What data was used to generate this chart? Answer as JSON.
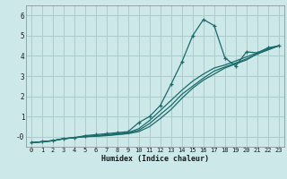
{
  "xlabel": "Humidex (Indice chaleur)",
  "bg_color": "#cce8e8",
  "grid_color": "#aacccc",
  "line_color": "#1a6b6b",
  "xlim": [
    -0.5,
    23.5
  ],
  "ylim": [
    -0.5,
    6.5
  ],
  "xticks": [
    0,
    1,
    2,
    3,
    4,
    5,
    6,
    7,
    8,
    9,
    10,
    11,
    12,
    13,
    14,
    15,
    16,
    17,
    18,
    19,
    20,
    21,
    22,
    23
  ],
  "yticks": [
    0,
    1,
    2,
    3,
    4,
    5,
    6
  ],
  "ytick_labels": [
    "-0",
    "1",
    "2",
    "3",
    "4",
    "5",
    "6"
  ],
  "line1_x": [
    0,
    1,
    2,
    3,
    4,
    5,
    6,
    7,
    8,
    9,
    10,
    11,
    12,
    13,
    14,
    15,
    16,
    17,
    18,
    19,
    20,
    21,
    22,
    23
  ],
  "line1_y": [
    -0.3,
    -0.25,
    -0.2,
    -0.1,
    -0.05,
    0.05,
    0.1,
    0.15,
    0.2,
    0.25,
    0.7,
    1.0,
    1.55,
    2.6,
    3.7,
    5.0,
    5.8,
    5.5,
    3.9,
    3.5,
    4.2,
    4.15,
    4.4,
    4.5
  ],
  "line2_x": [
    0,
    1,
    2,
    3,
    4,
    5,
    6,
    7,
    8,
    9,
    10,
    11,
    12,
    13,
    14,
    15,
    16,
    17,
    18,
    19,
    20,
    21,
    22,
    23
  ],
  "line2_y": [
    -0.3,
    -0.25,
    -0.2,
    -0.1,
    -0.05,
    0.02,
    0.05,
    0.1,
    0.15,
    0.2,
    0.4,
    0.8,
    1.3,
    1.8,
    2.3,
    2.75,
    3.1,
    3.4,
    3.55,
    3.75,
    3.95,
    4.15,
    4.35,
    4.5
  ],
  "line3_x": [
    0,
    1,
    2,
    3,
    4,
    5,
    6,
    7,
    8,
    9,
    10,
    11,
    12,
    13,
    14,
    15,
    16,
    17,
    18,
    19,
    20,
    21,
    22,
    23
  ],
  "line3_y": [
    -0.3,
    -0.25,
    -0.2,
    -0.1,
    -0.05,
    0.0,
    0.03,
    0.07,
    0.11,
    0.17,
    0.32,
    0.65,
    1.1,
    1.55,
    2.1,
    2.5,
    2.9,
    3.25,
    3.45,
    3.65,
    3.85,
    4.1,
    4.3,
    4.5
  ],
  "line4_x": [
    0,
    1,
    2,
    3,
    4,
    5,
    6,
    7,
    8,
    9,
    10,
    11,
    12,
    13,
    14,
    15,
    16,
    17,
    18,
    19,
    20,
    21,
    22,
    23
  ],
  "line4_y": [
    -0.3,
    -0.25,
    -0.2,
    -0.1,
    -0.05,
    0.0,
    0.02,
    0.05,
    0.1,
    0.15,
    0.25,
    0.5,
    0.9,
    1.35,
    1.9,
    2.4,
    2.8,
    3.1,
    3.4,
    3.6,
    3.8,
    4.1,
    4.3,
    4.5
  ]
}
